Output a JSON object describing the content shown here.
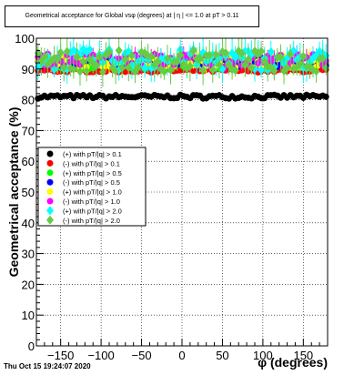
{
  "chart_data": {
    "type": "scatter",
    "title": "Geometrical acceptance for Global vsφ (degrees) at | η | <= 1.0 at pT > 0.11",
    "xlabel": "φ (degrees)",
    "ylabel": "Geometrical acceptance (%)",
    "xlim": [
      -180,
      180
    ],
    "ylim": [
      0,
      100
    ],
    "xticks": [
      -150,
      -100,
      -50,
      0,
      50,
      100,
      150
    ],
    "yticks": [
      0,
      10,
      20,
      30,
      40,
      50,
      60,
      70,
      80,
      90,
      100
    ],
    "grid": true,
    "legend_position": "middle-left",
    "x_points_per_series": 90,
    "series": [
      {
        "name": "(+) with pT/|q| > 0.1",
        "color": "#000000",
        "marker": "circle",
        "mean": 81,
        "spread": 0.6,
        "err": 1.0
      },
      {
        "name": "(-) with pT/|q| > 0.1",
        "color": "#ff0000",
        "marker": "circle",
        "mean": 89.5,
        "spread": 0.6,
        "err": 1.0
      },
      {
        "name": "(+) with pT/|q| > 0.5",
        "color": "#00ff00",
        "marker": "circle",
        "mean": 91.5,
        "spread": 1.5,
        "err": 2.0
      },
      {
        "name": "(-) with pT/|q| > 0.5",
        "color": "#0000ff",
        "marker": "circle",
        "mean": 92,
        "spread": 1.5,
        "err": 2.0
      },
      {
        "name": "(+) with pT/|q| > 1.0",
        "color": "#ffff00",
        "marker": "circle",
        "mean": 92.5,
        "spread": 2.0,
        "err": 3.0
      },
      {
        "name": "(-) with pT/|q| > 1.0",
        "color": "#ff00ff",
        "marker": "circle",
        "mean": 93,
        "spread": 2.0,
        "err": 3.0
      },
      {
        "name": "(+) with pT/|q| > 2.0",
        "color": "#00ffff",
        "marker": "diamond",
        "mean": 93,
        "spread": 3.5,
        "err": 5.0
      },
      {
        "name": "(-) with pT/|q| > 2.0",
        "color": "#66cc44",
        "marker": "diamond",
        "mean": 92.5,
        "spread": 3.5,
        "err": 5.0
      }
    ]
  },
  "timestamp": "Thu Oct 15 19:24:07 2020"
}
